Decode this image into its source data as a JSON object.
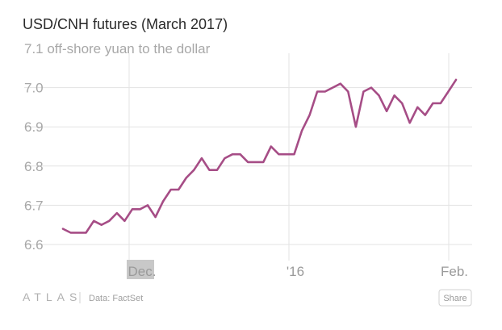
{
  "chart_data": {
    "type": "line",
    "title": "USD/CNH futures (March 2017)",
    "ylabel_unit": "off-shore yuan to the dollar",
    "ylim": [
      6.6,
      7.1
    ],
    "y_ticks": [
      "6.6",
      "6.7",
      "6.8",
      "6.9",
      "7.0",
      "7.1"
    ],
    "x_tick_labels": [
      "Dec.",
      "'16",
      "Feb."
    ],
    "grid": true,
    "series": [
      {
        "color": "#a64d86",
        "values": [
          6.64,
          6.63,
          6.63,
          6.63,
          6.66,
          6.65,
          6.66,
          6.68,
          6.66,
          6.69,
          6.69,
          6.7,
          6.67,
          6.71,
          6.74,
          6.74,
          6.77,
          6.79,
          6.82,
          6.79,
          6.79,
          6.82,
          6.83,
          6.83,
          6.81,
          6.81,
          6.81,
          6.85,
          6.83,
          6.83,
          6.83,
          6.89,
          6.93,
          6.99,
          6.99,
          7.0,
          7.01,
          6.99,
          6.9,
          6.99,
          7.0,
          6.98,
          6.94,
          6.98,
          6.96,
          6.91,
          6.95,
          6.93,
          6.96,
          6.96,
          6.99,
          7.02
        ]
      }
    ]
  },
  "footer": {
    "brand": "ATLAS",
    "source": "Data: FactSet",
    "share_label": "Share"
  }
}
